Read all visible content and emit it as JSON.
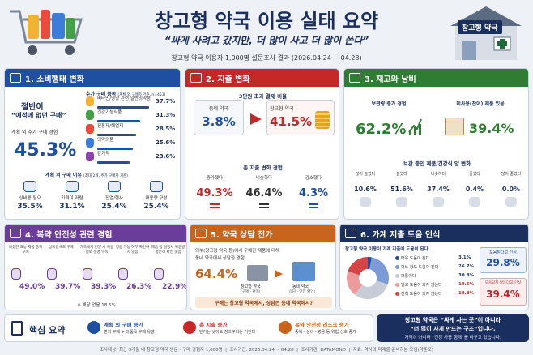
{
  "title": "창고형 약국 이용 실태 요약",
  "quote": "“싸게 사려고 갔지만, 더 많이 사고 더 많이 쓴다”",
  "survey": "창고형 약국 이용자 1,000명 설문조사 결과 (2026.04.24 ~ 04.28)",
  "store_sign": "창고형 약국",
  "colors": {
    "blue": "#1e4fa0",
    "red": "#c62828",
    "green": "#2e7d32",
    "purple": "#6a3d9a",
    "orange": "#c8641c",
    "navy": "#1b2f5e"
  },
  "s1": {
    "header": "1. 소비행태 변화",
    "half": "절반이",
    "unplanned": "“예정에 없던 구매”",
    "impulse_label": "계획 외 추가 구매 경험",
    "impulse_value": "45.3%",
    "items_title": "추가 구매 품목",
    "items_note": "(계획 외 구매자 기준, n=453)",
    "items": [
      {
        "label": "비타민/영양 관련 일반의약품",
        "value": "37.7%",
        "pct": 37.7
      },
      {
        "label": "건강기능식품",
        "value": "31.3%",
        "pct": 31.3
      },
      {
        "label": "진통제/해열제",
        "value": "28.5%",
        "pct": 28.5
      },
      {
        "label": "의약외품",
        "value": "25.6%",
        "pct": 25.6
      },
      {
        "label": "감기약",
        "value": "23.6%",
        "pct": 23.6
      }
    ],
    "reasons_title": "계획 외 구매 이유",
    "reasons_note": "(최대 2개, 추가 구매자 기준)",
    "reasons": [
      {
        "label": "상비용 필요",
        "value": "35.5%"
      },
      {
        "label": "가격이 저렴",
        "value": "31.1%"
      },
      {
        "label": "진열/행사",
        "value": "25.4%"
      },
      {
        "label": "대용량 구성",
        "value": "25.4%"
      }
    ]
  },
  "s2": {
    "header": "2. 지출 변화",
    "cost_title": "3만원 초과 결제 비율",
    "local_label": "동네 약국",
    "local_value": "3.8%",
    "warehouse_label": "창고형 약국",
    "warehouse_value": "41.5%",
    "change_title": "총 지출 변화 경험",
    "changes": [
      {
        "label": "증가했다",
        "value": "49.3%"
      },
      {
        "label": "비슷하다",
        "value": "46.4%"
      },
      {
        "label": "감소했다",
        "value": "4.3%"
      }
    ]
  },
  "s3": {
    "header": "3. 재고와 낭비",
    "stock_label": "보관량 증가 경험",
    "stock_value": "62.2%",
    "unused_label": "미사용(잔여) 제품 있음",
    "unused_value": "39.4%",
    "expiry_title": "보관 중인 제품/건강식 양 변화",
    "expiry": [
      {
        "label": "많이 늘었다",
        "value": "10.6%"
      },
      {
        "label": "늘었다",
        "value": "51.6%"
      },
      {
        "label": "비슷하다",
        "value": "37.4%"
      },
      {
        "label": "줄었다",
        "value": "0.4%"
      },
      {
        "label": "많이 줄었다",
        "value": "0.0%"
      }
    ]
  },
  "s4": {
    "header": "4. 복약 안전성 관련 경험",
    "items": [
      {
        "label": "비슷한 효능 제품 중복 구매",
        "value": "49.0%"
      },
      {
        "label": "상비용으로 구매",
        "value": "39.7%"
      },
      {
        "label": "가족에게 전달 시 복용 정보 설명 부족",
        "value": "39.3%"
      },
      {
        "label": "병용 가능 여부 확인하지 않음",
        "value": "26.3%"
      },
      {
        "label": "제품 첨 설명서 복용량 충분히 확인 못함",
        "value": "22.9%"
      }
    ],
    "note": "※ 해당 없음 18.5%"
  },
  "s5": {
    "header": "5. 약국 상담 전가",
    "desc1": "외부(창고형 약국 등)에서 구매한 제품에 대해",
    "desc2": "동네 약국에서 상담한 경험",
    "value": "64.4%",
    "ware_label": "창고형 약국",
    "ware_sub": "(구매 · 판매)",
    "local_label": "동네 약국",
    "local_sub": "(상담 · 안전 확인)",
    "footer": "구매는 창고형 약국에서, 상담은 동네 약국에서?"
  },
  "s6": {
    "header": "6. 가계 지출 도움 인식",
    "pie_title": "창고형 약국 이용이 가계 지출에 도움이 된다",
    "legend": [
      {
        "label": "매우 도움이 된다",
        "value": "3.1%",
        "pct": 3.1,
        "color": "#1e4fa0"
      },
      {
        "label": "어느 정도 도움이 된다",
        "value": "26.7%",
        "pct": 26.7,
        "color": "#7a9bd6"
      },
      {
        "label": "보통이다",
        "value": "30.8%",
        "pct": 30.8,
        "color": "#c7ccd6"
      },
      {
        "label": "별로 도움이 되지 않는다",
        "value": "19.6%",
        "pct": 19.6,
        "color": "#ec9a9a"
      },
      {
        "label": "전혀 도움이 되지 않는다",
        "value": "19.8%",
        "pct": 19.8,
        "color": "#d64545"
      }
    ],
    "help_label": "도움된다고 인식",
    "help_value": "29.8%",
    "nohelp_label": "도움되지 않는다고 인식",
    "nohelp_value": "39.4%"
  },
  "summary": {
    "label": "핵심 요약",
    "items": [
      {
        "title": "계획 외 구매 증가",
        "desc": "편의 구매 + 다품목 구매 유발"
      },
      {
        "title": "총 지출 증가",
        "desc": "단가는 낮아도 장바구니는 커진다"
      },
      {
        "title": "복약 안전성 리스크 증가",
        "desc": "중복 · 상비 · 병용 등 위험 신호 증가"
      }
    ],
    "box1": "창고형 약국은 “싸게 사는 곳”이 아니라",
    "box2": "“더 많이 사게 만드는 구조”입니다.",
    "box3": "가격이 아니라 “건강 사용 행태”를 바꾸고 있습니다."
  },
  "footer": {
    "target": "조사대상: 최근 3개월 내 창고형 약국 방문 · 구매 경험자 1,000명",
    "period": "조사기간: 2026.04.24 ~ 04.28",
    "org": "조사기관: DATAMOND",
    "note": "자료: 약사의 미래를 준비하는 모임(약준모)"
  }
}
